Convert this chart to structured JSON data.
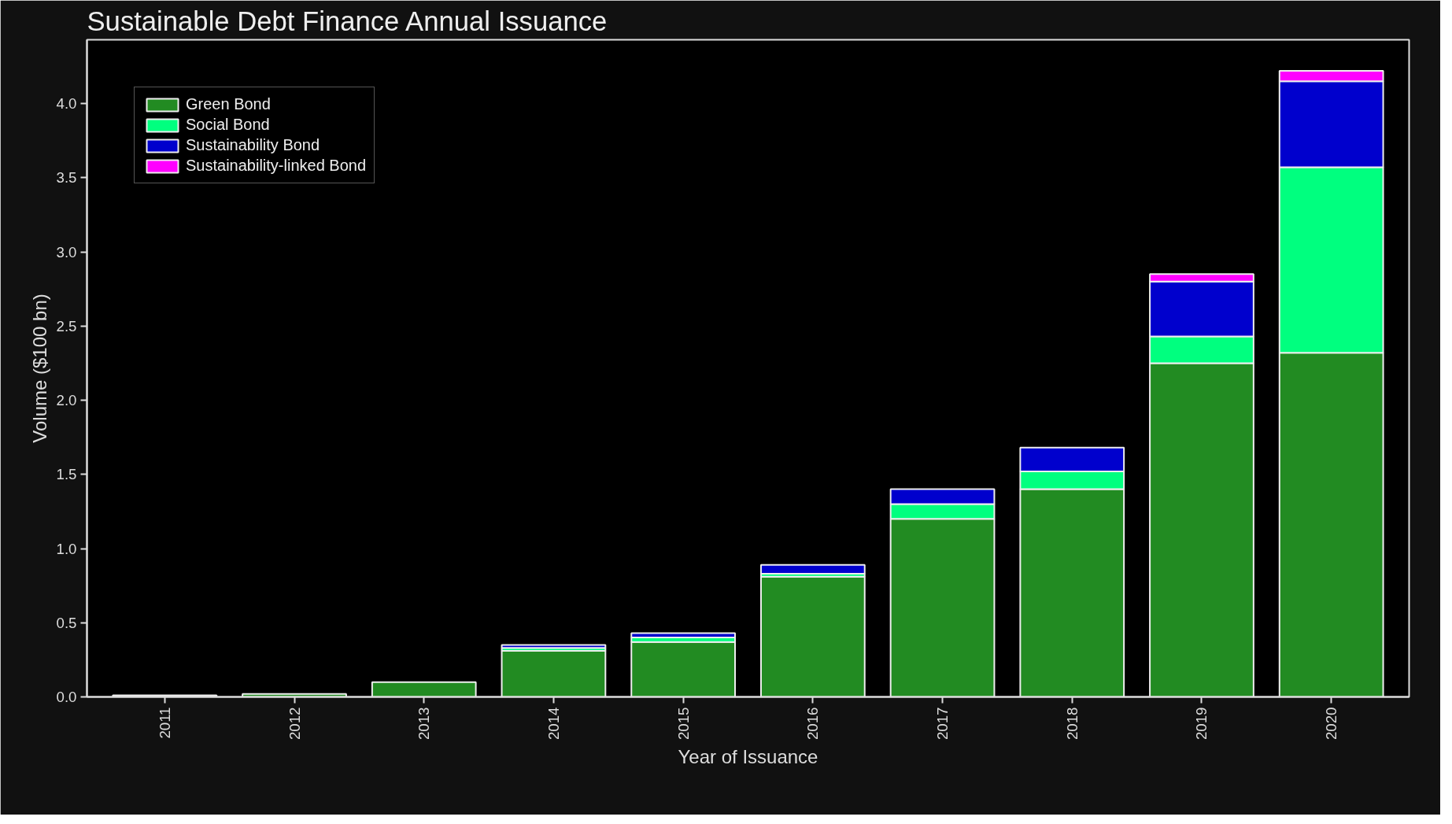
{
  "chart_data": {
    "type": "bar",
    "title": "Sustainable Debt Finance Annual Issuance",
    "xlabel": "Year of Issuance",
    "ylabel": "Volume ($100 bn)",
    "categories": [
      "2011",
      "2012",
      "2013",
      "2014",
      "2015",
      "2016",
      "2017",
      "2018",
      "2019",
      "2020"
    ],
    "stacked": true,
    "series": [
      {
        "name": "Green Bond",
        "color": "#228b22",
        "values": [
          0.01,
          0.02,
          0.1,
          0.31,
          0.37,
          0.81,
          1.2,
          1.4,
          2.25,
          2.32
        ]
      },
      {
        "name": "Social Bond",
        "color": "#00ff7f",
        "values": [
          null,
          null,
          null,
          0.02,
          0.03,
          0.02,
          0.1,
          0.12,
          0.18,
          1.25
        ]
      },
      {
        "name": "Sustainability Bond",
        "color": "#0000cd",
        "values": [
          null,
          null,
          null,
          0.02,
          0.03,
          0.06,
          0.1,
          0.16,
          0.37,
          0.58
        ]
      },
      {
        "name": "Sustainability-linked Bond",
        "color": "#ff00ff",
        "values": [
          null,
          null,
          null,
          null,
          null,
          null,
          null,
          null,
          0.05,
          0.07
        ]
      }
    ],
    "ylim": [
      0,
      4.43
    ],
    "yticks": [
      {
        "value": 0,
        "label": "0.0"
      },
      0.5,
      {
        "value": 1,
        "label": "1.0"
      },
      1.5,
      {
        "value": 2,
        "label": "2.0"
      },
      2.5,
      {
        "value": 3,
        "label": "3.0"
      },
      3.5,
      {
        "value": 4,
        "label": "4.0"
      }
    ],
    "grid": false,
    "legend": "top left"
  }
}
